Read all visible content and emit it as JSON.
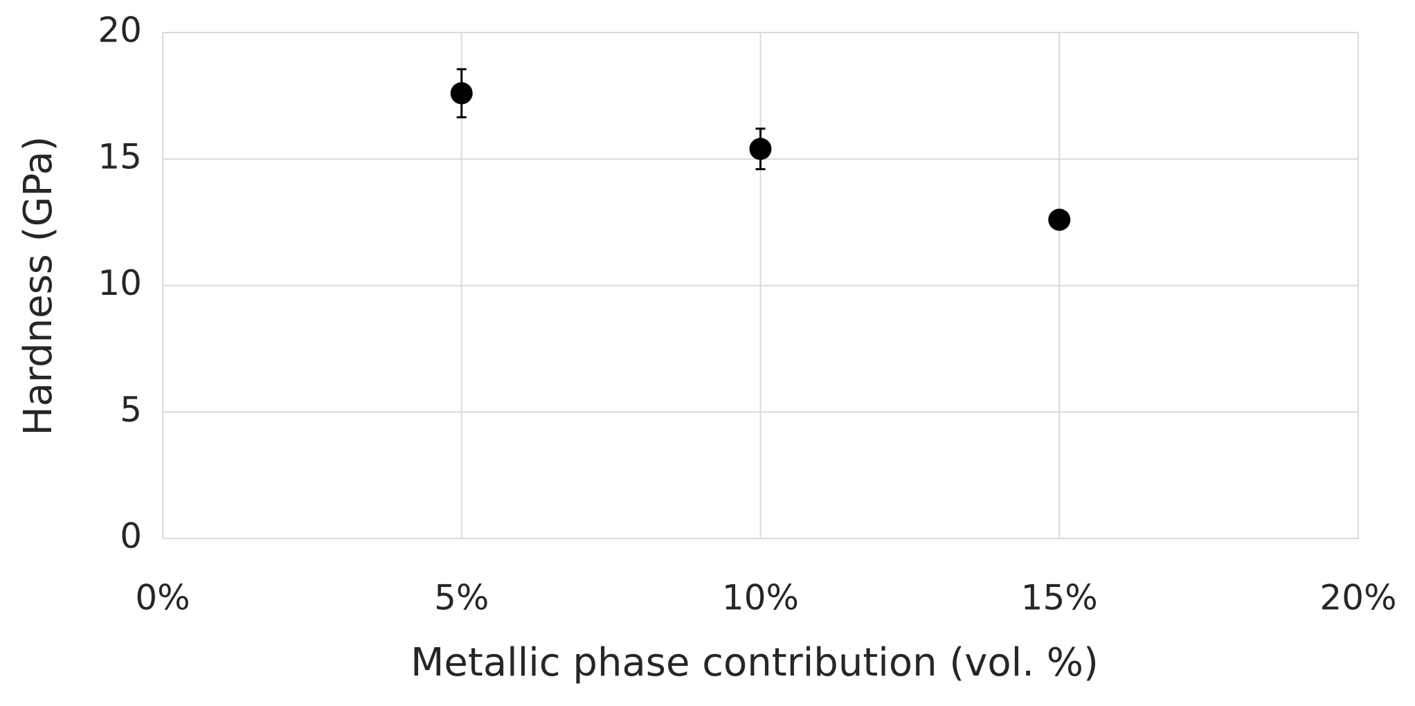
{
  "chart_data": {
    "type": "scatter",
    "x_label": "Metallic phase contribution (vol. %)",
    "y_label": "Hardness (GPa)",
    "x": [
      5,
      10,
      15
    ],
    "values": [
      17.6,
      15.4,
      12.6
    ],
    "errors": [
      0.95,
      0.8,
      0.2
    ],
    "color": "#000000",
    "xlim": [
      0,
      20
    ],
    "xticks": [
      {
        "value": 0,
        "label": "0%"
      },
      {
        "value": 5,
        "label": "5%"
      },
      {
        "value": 10,
        "label": "10%"
      },
      {
        "value": 15,
        "label": "15%"
      },
      {
        "value": 20,
        "label": "20%"
      }
    ],
    "ylim": [
      0,
      20
    ],
    "yticks": [
      0,
      5,
      10,
      15,
      20
    ],
    "grid": true
  }
}
